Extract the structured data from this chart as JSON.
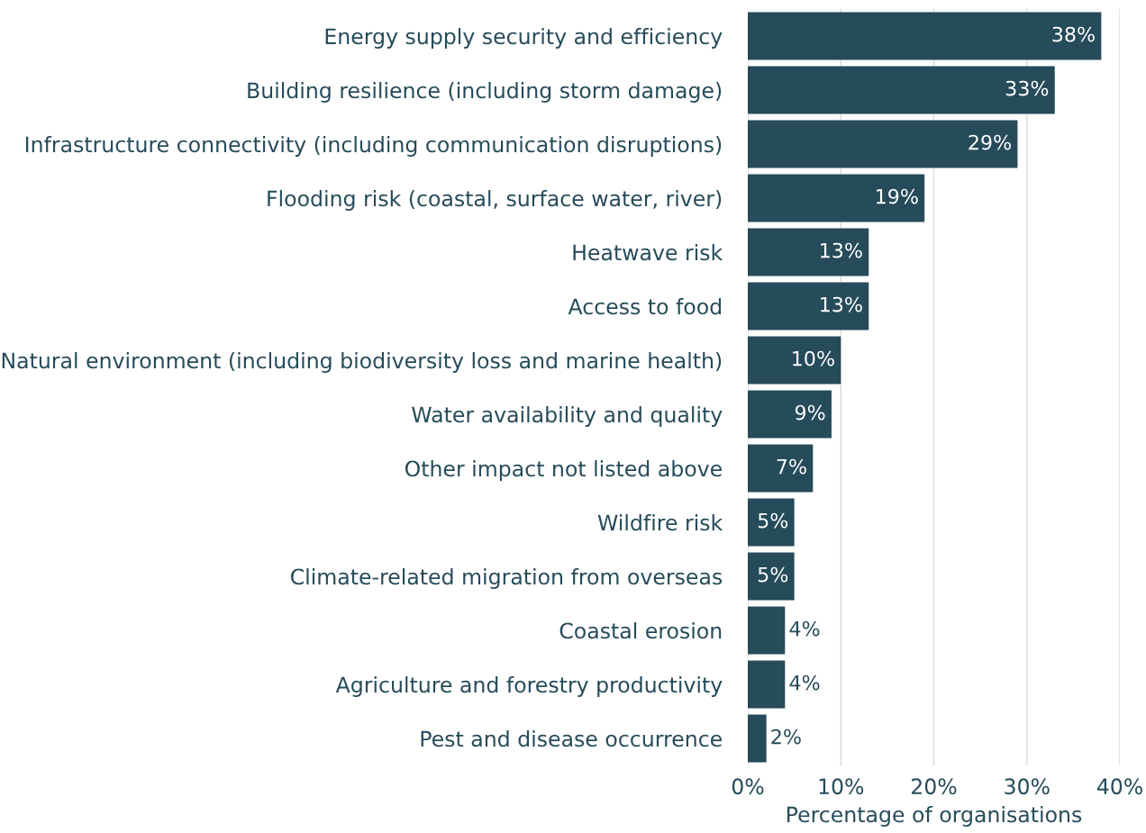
{
  "chart_data": {
    "type": "bar",
    "orientation": "horizontal",
    "xlabel": "Percentage of organisations",
    "categories": [
      "Energy supply security and efficiency",
      "Building resilience (including storm damage)",
      "Infrastructure connectivity (including communication disruptions)",
      "Flooding risk (coastal, surface water, river)",
      "Heatwave risk",
      "Access to food",
      "Natural environment (including biodiversity loss and marine health)",
      "Water availability and quality",
      "Other impact not listed above",
      "Wildfire risk",
      "Climate-related migration from overseas",
      "Coastal erosion",
      "Agriculture and forestry productivity",
      "Pest and disease occurrence"
    ],
    "values": [
      38,
      33,
      29,
      19,
      13,
      13,
      10,
      9,
      7,
      5,
      5,
      4,
      4,
      2
    ],
    "value_labels": [
      "38%",
      "33%",
      "29%",
      "19%",
      "13%",
      "13%",
      "10%",
      "9%",
      "7%",
      "5%",
      "5%",
      "4%",
      "4%",
      "2%"
    ],
    "color": "#264b5a",
    "xlim": [
      0,
      40
    ],
    "xticks": [
      {
        "value": 0,
        "label": "0%"
      },
      {
        "value": 10,
        "label": "10%"
      },
      {
        "value": 20,
        "label": "20%"
      },
      {
        "value": 30,
        "label": "30%"
      },
      {
        "value": 40,
        "label": "40%"
      }
    ],
    "grid": "x"
  }
}
